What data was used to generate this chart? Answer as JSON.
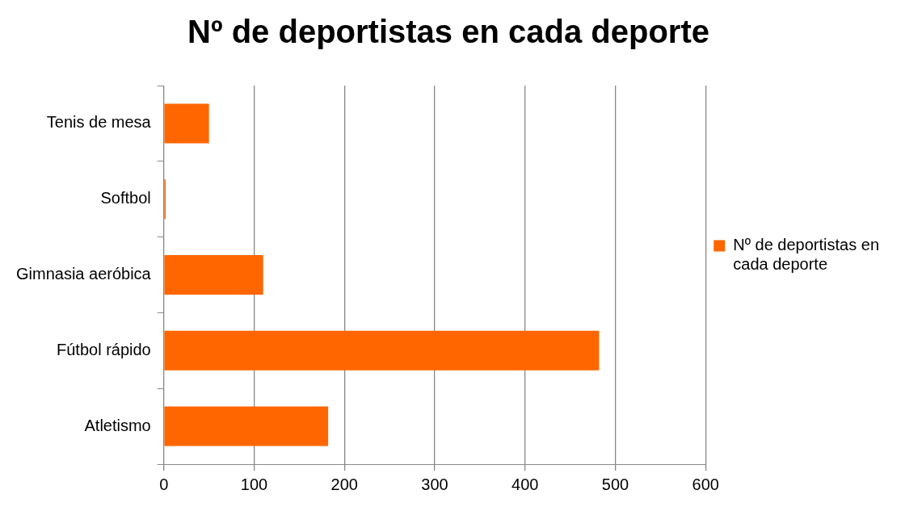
{
  "chart_data": {
    "type": "bar",
    "orientation": "horizontal",
    "title": "Nº de deportistas en cada deporte",
    "categories": [
      "Tenis de mesa",
      "Softbol",
      "Gimnasia aeróbica",
      "Fútbol rápido",
      "Atletismo"
    ],
    "series": [
      {
        "name": "Nº de deportistas en cada deporte",
        "color": "#ff6600",
        "values": [
          50,
          2,
          110,
          482,
          182
        ]
      }
    ],
    "xlim": [
      0,
      600
    ],
    "xticks": [
      0,
      100,
      200,
      300,
      400,
      500,
      600
    ],
    "grid": "x",
    "legend": "right"
  }
}
